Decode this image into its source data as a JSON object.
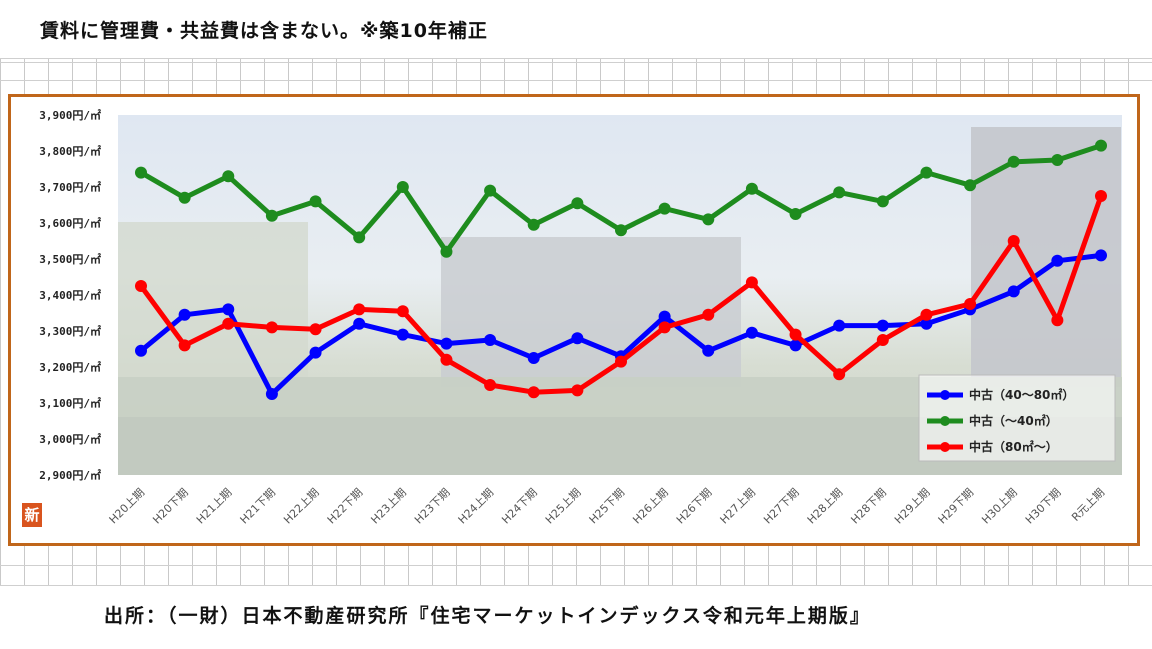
{
  "header": {
    "note": "賃料に管理費・共益費は含まない。※築10年補正"
  },
  "source": {
    "text": "出所：（一財）日本不動産研究所『住宅マーケットインデックス令和元年上期版』"
  },
  "logo": {
    "glyph": "新",
    "color": "#d9541e"
  },
  "colors": {
    "frame": "#c0661a"
  },
  "chart_data": {
    "type": "line",
    "title": "",
    "xlabel": "",
    "ylabel": "",
    "ylim": [
      2900,
      3900
    ],
    "y_ticks": [
      3900,
      3800,
      3700,
      3600,
      3500,
      3400,
      3300,
      3200,
      3100,
      3000,
      2900
    ],
    "y_tick_labels": [
      "3,900円/㎡",
      "3,800円/㎡",
      "3,700円/㎡",
      "3,600円/㎡",
      "3,500円/㎡",
      "3,400円/㎡",
      "3,300円/㎡",
      "3,200円/㎡",
      "3,100円/㎡",
      "3,000円/㎡",
      "2,900円/㎡"
    ],
    "categories": [
      "H20上期",
      "H20下期",
      "H21上期",
      "H21下期",
      "H22上期",
      "H22下期",
      "H23上期",
      "H23下期",
      "H24上期",
      "H24下期",
      "H25上期",
      "H25下期",
      "H26上期",
      "H26下期",
      "H27上期",
      "H27下期",
      "H28上期",
      "H28下期",
      "H29上期",
      "H29下期",
      "H30上期",
      "H30下期",
      "R元上期"
    ],
    "legend_position": "bottom-right",
    "series": [
      {
        "name": "中古（40～80㎡）",
        "color": "#0000ff",
        "values": [
          3245,
          3345,
          3360,
          3125,
          3240,
          3320,
          3290,
          3265,
          3275,
          3225,
          3280,
          3230,
          3340,
          3245,
          3295,
          3260,
          3315,
          3315,
          3320,
          3360,
          3410,
          3495,
          3510
        ]
      },
      {
        "name": "中古（～40㎡）",
        "color": "#1e8c1e",
        "values": [
          3740,
          3670,
          3730,
          3620,
          3660,
          3560,
          3700,
          3520,
          3690,
          3595,
          3655,
          3580,
          3640,
          3610,
          3695,
          3625,
          3685,
          3660,
          3740,
          3705,
          3770,
          3775,
          3815
        ]
      },
      {
        "name": "中古（80㎡～）",
        "color": "#ff0000",
        "values": [
          3425,
          3260,
          3320,
          3310,
          3305,
          3360,
          3355,
          3220,
          3150,
          3130,
          3135,
          3215,
          3310,
          3345,
          3435,
          3290,
          3180,
          3275,
          3345,
          3375,
          3550,
          3330,
          3675
        ]
      }
    ]
  }
}
